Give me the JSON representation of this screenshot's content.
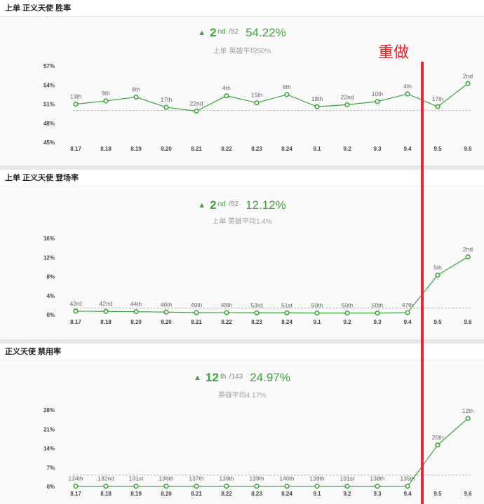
{
  "annotation": {
    "text": "重做",
    "color": "#e8283a"
  },
  "accent": "#3aa63a",
  "panels": [
    {
      "title": "上单 正义天使 胜率",
      "rank": "2",
      "rank_suffix": "nd",
      "total": "/52",
      "value": "54.22%",
      "average": "上单 英雄平均50%",
      "chart_data": {
        "type": "line",
        "x": [
          "8.17",
          "8.18",
          "8.19",
          "8.20",
          "8.21",
          "8.22",
          "8.23",
          "8.24",
          "9.1",
          "9.2",
          "9.3",
          "9.4",
          "9.5",
          "9.6"
        ],
        "y": [
          51.0,
          51.5,
          52.1,
          50.5,
          49.9,
          52.3,
          51.2,
          52.5,
          50.6,
          50.9,
          51.4,
          52.6,
          50.6,
          54.22
        ],
        "point_labels": [
          "13th",
          "9th",
          "6th",
          "17th",
          "22nd",
          "4th",
          "15th",
          "8th",
          "18th",
          "22nd",
          "10th",
          "4th",
          "17th",
          "2nd"
        ],
        "yticks": [
          "57%",
          "54%",
          "51%",
          "48%",
          "45%"
        ],
        "ytick_values": [
          57,
          54,
          51,
          48,
          45
        ],
        "ylim": [
          45,
          57
        ],
        "reference": 50
      }
    },
    {
      "title": "上单 正义天使 登场率",
      "rank": "2",
      "rank_suffix": "nd",
      "total": "/52",
      "value": "12.12%",
      "average": "上单 英雄平均1.4%",
      "chart_data": {
        "type": "line",
        "x": [
          "8.17",
          "8.18",
          "8.19",
          "8.20",
          "8.21",
          "8.22",
          "8.23",
          "8.24",
          "9.1",
          "9.2",
          "9.3",
          "9.4",
          "9.5",
          "9.6"
        ],
        "y": [
          0.75,
          0.7,
          0.65,
          0.55,
          0.45,
          0.45,
          0.4,
          0.4,
          0.35,
          0.35,
          0.35,
          0.45,
          8.3,
          12.12
        ],
        "point_labels": [
          "43rd",
          "42nd",
          "44th",
          "46th",
          "49th",
          "48th",
          "53rd",
          "51st",
          "50th",
          "50th",
          "50th",
          "47th",
          "5th",
          "2nd"
        ],
        "yticks": [
          "16%",
          "12%",
          "8%",
          "4%",
          "0%"
        ],
        "ytick_values": [
          16,
          12,
          8,
          4,
          0
        ],
        "ylim": [
          0,
          16
        ],
        "reference": 1.4
      }
    },
    {
      "title": "正义天使 禁用率",
      "rank": "12",
      "rank_suffix": "th",
      "total": "/143",
      "value": "24.97%",
      "average": "英雄平均4.17%",
      "chart_data": {
        "type": "line",
        "x": [
          "8.17",
          "8.18",
          "8.19",
          "8.20",
          "8.21",
          "8.22",
          "8.23",
          "8.24",
          "9.1",
          "9.2",
          "9.3",
          "9.4",
          "9.5",
          "9.6"
        ],
        "y": [
          0.1,
          0.1,
          0.1,
          0.1,
          0.1,
          0.1,
          0.1,
          0.1,
          0.1,
          0.1,
          0.1,
          0.1,
          15.2,
          24.97
        ],
        "point_labels": [
          "134th",
          "132nd",
          "131st",
          "136th",
          "137th",
          "139th",
          "139th",
          "140th",
          "139th",
          "131st",
          "138th",
          "135th",
          "20th",
          "12th"
        ],
        "yticks": [
          "28%",
          "21%",
          "14%",
          "7%",
          "0%"
        ],
        "ytick_values": [
          28,
          21,
          14,
          7,
          0
        ],
        "ylim": [
          0,
          28
        ],
        "reference": 4.17
      }
    }
  ]
}
